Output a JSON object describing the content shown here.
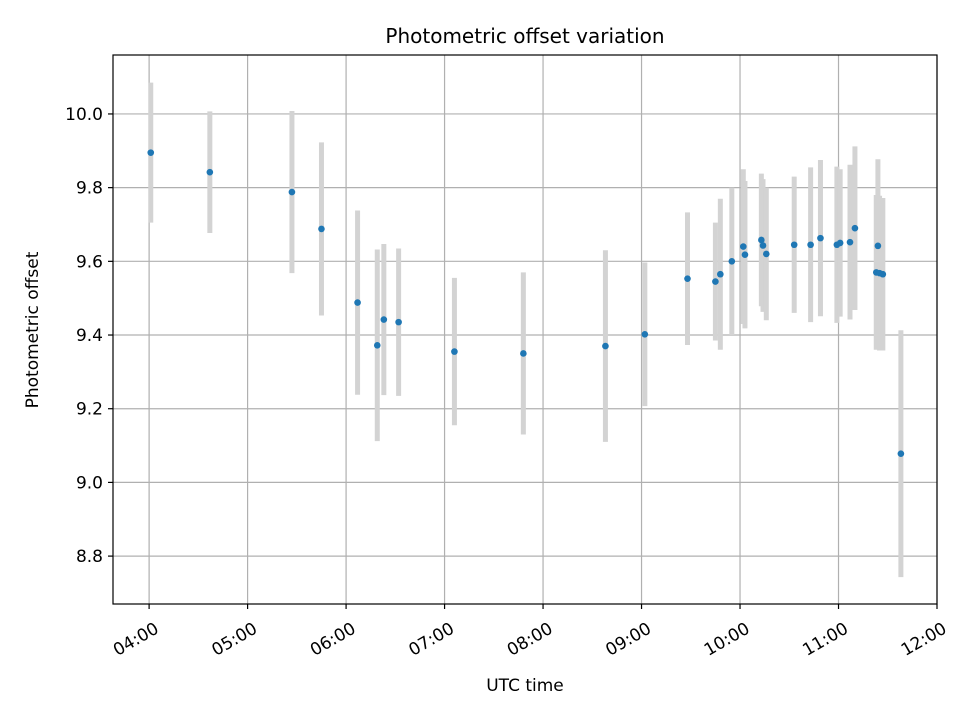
{
  "chart_data": {
    "type": "scatter",
    "title": "Photometric offset variation",
    "xlabel": "UTC time",
    "ylabel": "Photometric offset",
    "grid": true,
    "xlim": [
      "03:38",
      "12:00"
    ],
    "ylim": [
      8.67,
      10.16
    ],
    "x_ticks": [
      "04:00",
      "05:00",
      "06:00",
      "07:00",
      "08:00",
      "09:00",
      "10:00",
      "11:00",
      "12:00"
    ],
    "y_ticks": [
      8.8,
      9.0,
      9.2,
      9.4,
      9.6,
      9.8,
      10.0
    ],
    "y_tick_labels": [
      "8.8",
      "9.0",
      "9.2",
      "9.4",
      "9.6",
      "9.8",
      "10.0"
    ],
    "colors": {
      "point": "#1f77b4",
      "errorbar": "#d3d3d3",
      "grid": "#b0b0b0"
    },
    "series": [
      {
        "points": [
          {
            "x": "04:01",
            "y": 9.895,
            "err": 0.19
          },
          {
            "x": "04:37",
            "y": 9.842,
            "err": 0.165
          },
          {
            "x": "05:27",
            "y": 9.788,
            "err": 0.22
          },
          {
            "x": "05:45",
            "y": 9.688,
            "err": 0.235
          },
          {
            "x": "06:07",
            "y": 9.488,
            "err": 0.25
          },
          {
            "x": "06:19",
            "y": 9.372,
            "err": 0.26
          },
          {
            "x": "06:23",
            "y": 9.442,
            "err": 0.205
          },
          {
            "x": "06:32",
            "y": 9.435,
            "err": 0.2
          },
          {
            "x": "07:06",
            "y": 9.355,
            "err": 0.2
          },
          {
            "x": "07:48",
            "y": 9.35,
            "err": 0.22
          },
          {
            "x": "08:38",
            "y": 9.37,
            "err": 0.26
          },
          {
            "x": "09:02",
            "y": 9.402,
            "err": 0.195
          },
          {
            "x": "09:28",
            "y": 9.553,
            "err": 0.18
          },
          {
            "x": "09:45",
            "y": 9.545,
            "err": 0.16
          },
          {
            "x": "09:48",
            "y": 9.565,
            "err": 0.205
          },
          {
            "x": "09:55",
            "y": 9.6,
            "err": 0.2
          },
          {
            "x": "10:02",
            "y": 9.64,
            "err": 0.21
          },
          {
            "x": "10:03",
            "y": 9.618,
            "err": 0.2
          },
          {
            "x": "10:13",
            "y": 9.658,
            "err": 0.18
          },
          {
            "x": "10:14",
            "y": 9.643,
            "err": 0.18
          },
          {
            "x": "10:16",
            "y": 9.62,
            "err": 0.18
          },
          {
            "x": "10:33",
            "y": 9.645,
            "err": 0.185
          },
          {
            "x": "10:43",
            "y": 9.645,
            "err": 0.21
          },
          {
            "x": "10:49",
            "y": 9.663,
            "err": 0.212
          },
          {
            "x": "10:59",
            "y": 9.645,
            "err": 0.212
          },
          {
            "x": "11:01",
            "y": 9.65,
            "err": 0.2
          },
          {
            "x": "11:07",
            "y": 9.652,
            "err": 0.21
          },
          {
            "x": "11:10",
            "y": 9.69,
            "err": 0.222
          },
          {
            "x": "11:23",
            "y": 9.57,
            "err": 0.21
          },
          {
            "x": "11:24",
            "y": 9.642,
            "err": 0.235
          },
          {
            "x": "11:25",
            "y": 9.568,
            "err": 0.21
          },
          {
            "x": "11:27",
            "y": 9.565,
            "err": 0.207
          },
          {
            "x": "11:38",
            "y": 9.078,
            "err": 0.335
          }
        ]
      }
    ]
  }
}
